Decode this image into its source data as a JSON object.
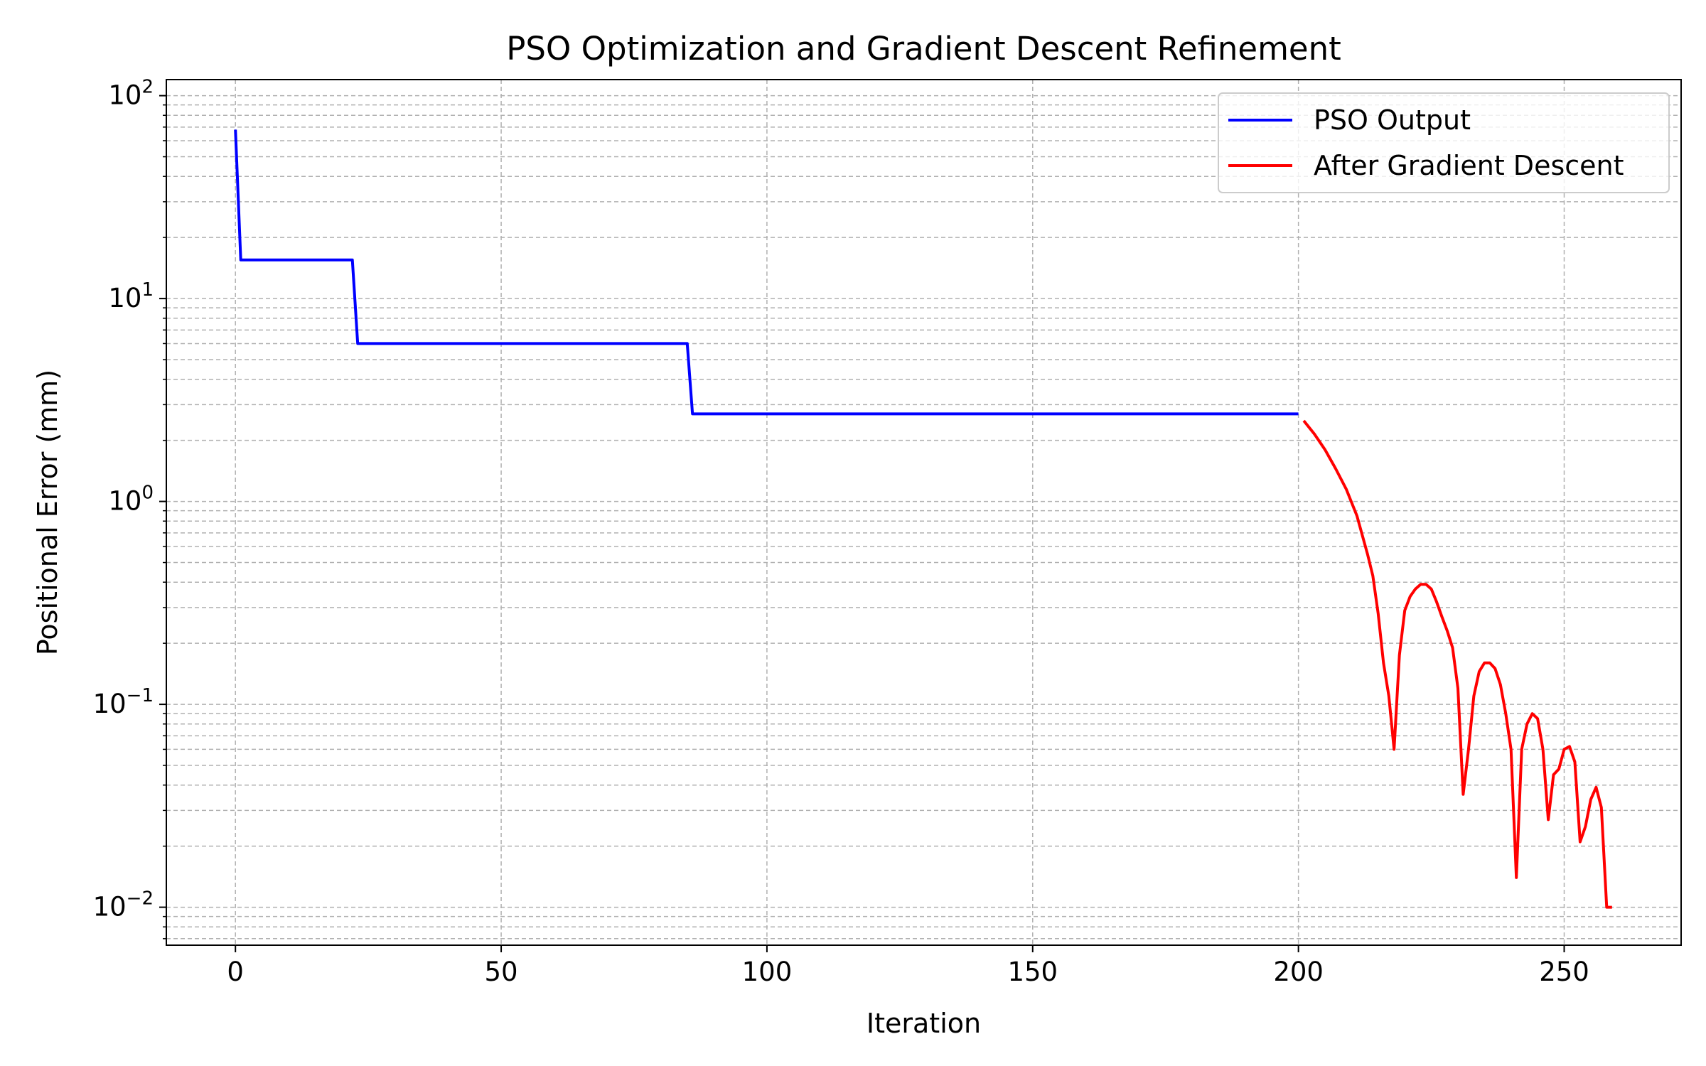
{
  "chart_data": {
    "type": "line",
    "title": "PSO Optimization and Gradient Descent Refinement",
    "xlabel": "Iteration",
    "ylabel": "Positional Error (mm)",
    "xlim": [
      -13,
      272
    ],
    "ylim": [
      0.0065,
      120
    ],
    "yscale": "log",
    "x_ticks": [
      0,
      50,
      100,
      150,
      200,
      250
    ],
    "x_tick_labels": [
      "0",
      "50",
      "100",
      "150",
      "200",
      "250"
    ],
    "y_ticks": [
      0.01,
      0.1,
      1,
      10,
      100
    ],
    "y_tick_labels": [
      {
        "base": "10",
        "exp": "−2"
      },
      {
        "base": "10",
        "exp": "−1"
      },
      {
        "base": "10",
        "exp": "0"
      },
      {
        "base": "10",
        "exp": "1"
      },
      {
        "base": "10",
        "exp": "2"
      }
    ],
    "grid": true,
    "legend_position": "top-right",
    "series": [
      {
        "name": "PSO Output",
        "color": "#0000ff",
        "x": [
          0,
          1,
          22,
          23,
          85,
          86,
          200
        ],
        "y": [
          68,
          15.5,
          15.5,
          6.0,
          6.0,
          2.7,
          2.7
        ]
      },
      {
        "name": "After Gradient Descent",
        "color": "#ff0000",
        "x": [
          201,
          203,
          205,
          207,
          209,
          211,
          213,
          214,
          215,
          216,
          217,
          218,
          219,
          220,
          221,
          222,
          223,
          224,
          225,
          226,
          227,
          228,
          229,
          230,
          231,
          232,
          233,
          234,
          235,
          236,
          237,
          238,
          239,
          240,
          241,
          242,
          243,
          244,
          245,
          246,
          247,
          248,
          249,
          250,
          251,
          252,
          253,
          254,
          255,
          256,
          257,
          258,
          259
        ],
        "y": [
          2.5,
          2.15,
          1.8,
          1.45,
          1.15,
          0.85,
          0.55,
          0.43,
          0.28,
          0.16,
          0.11,
          0.06,
          0.175,
          0.29,
          0.34,
          0.37,
          0.39,
          0.39,
          0.37,
          0.32,
          0.27,
          0.23,
          0.19,
          0.12,
          0.036,
          0.06,
          0.11,
          0.145,
          0.16,
          0.16,
          0.15,
          0.125,
          0.09,
          0.06,
          0.014,
          0.06,
          0.08,
          0.09,
          0.085,
          0.06,
          0.027,
          0.045,
          0.048,
          0.06,
          0.062,
          0.052,
          0.021,
          0.025,
          0.034,
          0.039,
          0.031,
          0.01,
          0.01
        ]
      }
    ]
  }
}
